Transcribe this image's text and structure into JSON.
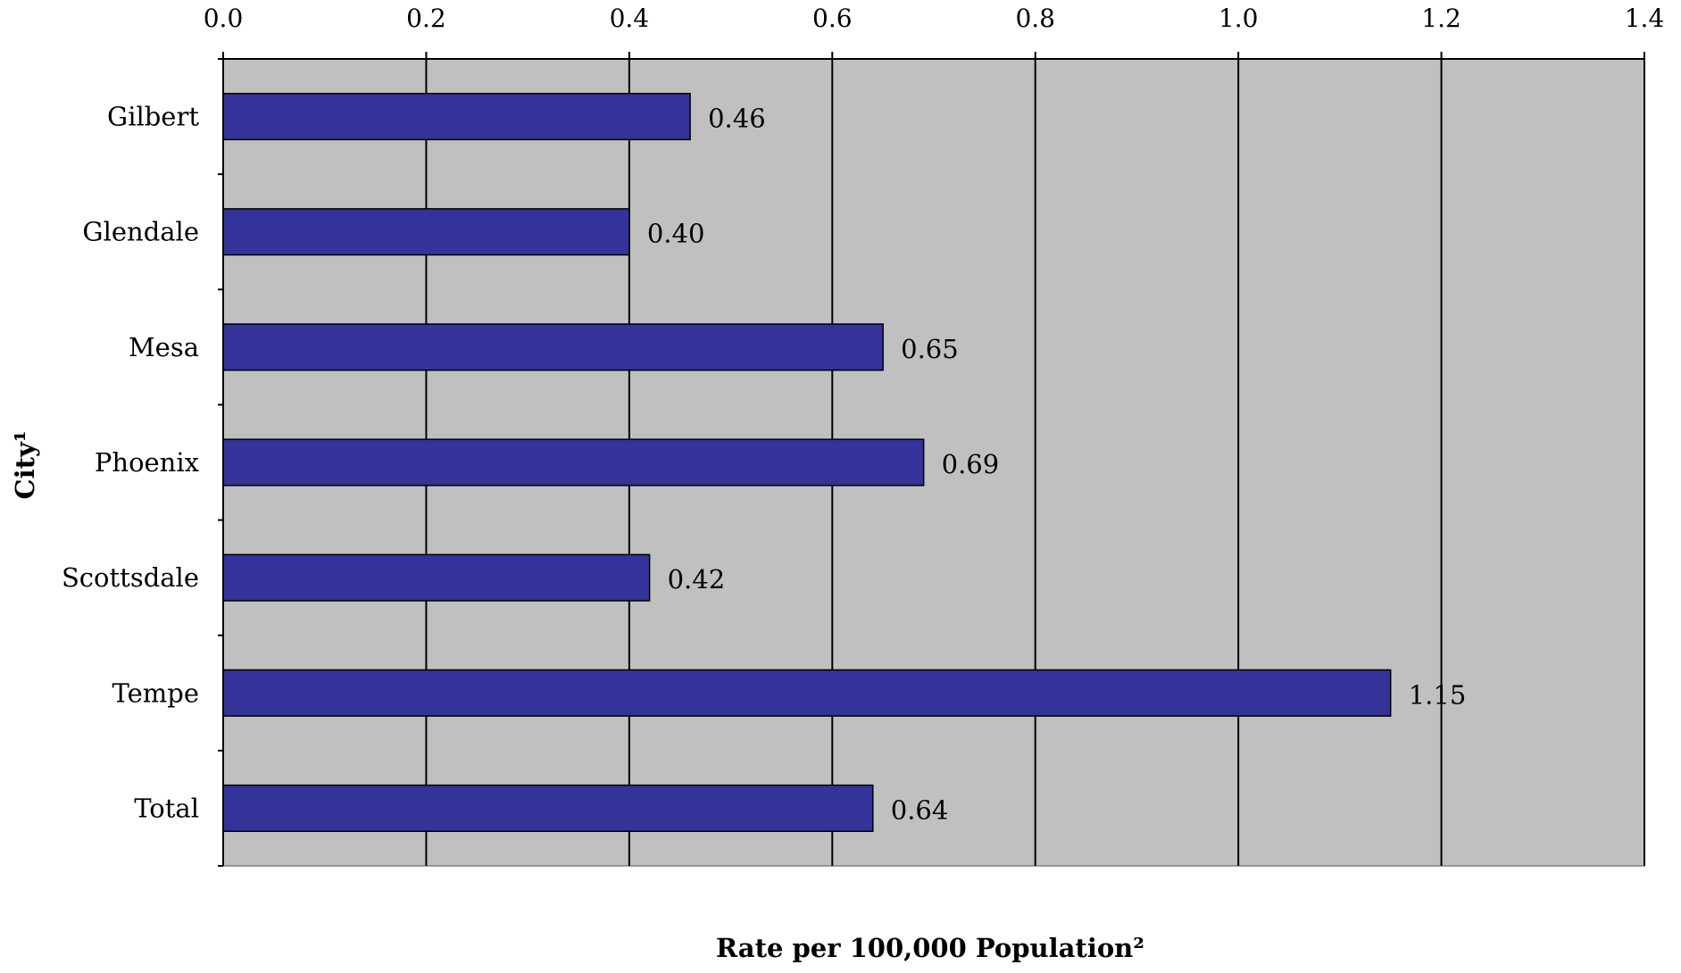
{
  "chart_data": {
    "type": "bar",
    "orientation": "horizontal",
    "categories": [
      "Gilbert",
      "Glendale",
      "Mesa",
      "Phoenix",
      "Scottsdale",
      "Tempe",
      "Total"
    ],
    "values": [
      0.46,
      0.4,
      0.65,
      0.69,
      0.42,
      1.15,
      0.64
    ],
    "value_labels": [
      "0.46",
      "0.40",
      "0.65",
      "0.69",
      "0.42",
      "1.15",
      "0.64"
    ],
    "xticks": [
      "0.0",
      "0.2",
      "0.4",
      "0.6",
      "0.8",
      "1.0",
      "1.2",
      "1.4"
    ],
    "xlim": [
      0,
      1.4
    ],
    "xlabel": "Rate per 100,000 Population²",
    "ylabel": "City¹",
    "x_axis_position": "top",
    "grid": "vertical",
    "legend": "none",
    "colors": {
      "bar_fill": "#333399",
      "plot_background": "#c0c0c0",
      "gridline": "#000000"
    }
  }
}
